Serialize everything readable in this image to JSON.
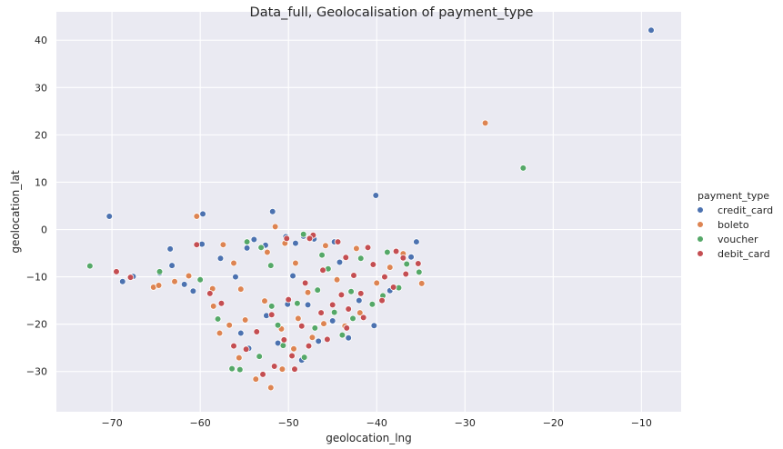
{
  "chart_data": {
    "type": "scatter",
    "title": "Data_full, Geolocalisation of payment_type",
    "xlabel": "geolocation_lng",
    "ylabel": "geolocation_lat",
    "xlim": [
      -76.3,
      -5.5
    ],
    "ylim": [
      -38.5,
      46.0
    ],
    "xticks": [
      -70,
      -60,
      -50,
      -40,
      -30,
      -20,
      -10
    ],
    "yticks": [
      -30,
      -20,
      -10,
      0,
      10,
      20,
      30,
      40
    ],
    "xtick_labels": [
      "−70",
      "−60",
      "−50",
      "−40",
      "−30",
      "−20",
      "−10"
    ],
    "ytick_labels": [
      "−30",
      "−20",
      "−10",
      "0",
      "10",
      "20",
      "30",
      "40"
    ],
    "grid": true,
    "legend": {
      "title": "payment_type",
      "placement": "right"
    },
    "series": [
      {
        "name": "credit_card",
        "color": "#4c72b0",
        "points": [
          [
            -70.3,
            2.8
          ],
          [
            -68.8,
            -11.0
          ],
          [
            -67.6,
            -9.9
          ],
          [
            -63.4,
            -4.1
          ],
          [
            -63.2,
            -7.6
          ],
          [
            -64.6,
            -9.2
          ],
          [
            -61.8,
            -11.6
          ],
          [
            -60.8,
            -13.0
          ],
          [
            -59.8,
            -3.1
          ],
          [
            -59.7,
            3.3
          ],
          [
            -57.7,
            -6.1
          ],
          [
            -56.0,
            -10.0
          ],
          [
            -54.7,
            -3.9
          ],
          [
            -53.9,
            -2.1
          ],
          [
            -51.8,
            3.8
          ],
          [
            -52.6,
            -3.3
          ],
          [
            -50.3,
            -1.5
          ],
          [
            -49.2,
            -2.9
          ],
          [
            -48.3,
            -1.4
          ],
          [
            -47.1,
            -2.0
          ],
          [
            -44.8,
            -2.6
          ],
          [
            -40.1,
            7.2
          ],
          [
            -35.5,
            -2.6
          ],
          [
            -8.9,
            42.1
          ],
          [
            -54.5,
            -25.1
          ],
          [
            -51.2,
            -24.0
          ],
          [
            -50.1,
            -15.8
          ],
          [
            -47.8,
            -15.9
          ],
          [
            -46.6,
            -23.6
          ],
          [
            -43.2,
            -22.9
          ],
          [
            -38.5,
            -12.9
          ],
          [
            -40.3,
            -20.3
          ],
          [
            -36.1,
            -5.8
          ],
          [
            -45.0,
            -19.3
          ],
          [
            -48.5,
            -27.6
          ],
          [
            -52.5,
            -18.2
          ],
          [
            -55.4,
            -21.9
          ],
          [
            -42.0,
            -15.0
          ],
          [
            -49.5,
            -9.8
          ],
          [
            -44.2,
            -6.9
          ]
        ]
      },
      {
        "name": "boleto",
        "color": "#dd8452",
        "points": [
          [
            -60.4,
            2.8
          ],
          [
            -57.4,
            -3.2
          ],
          [
            -56.2,
            -7.1
          ],
          [
            -65.3,
            -12.2
          ],
          [
            -64.7,
            -11.8
          ],
          [
            -62.9,
            -11.0
          ],
          [
            -61.3,
            -9.8
          ],
          [
            -58.6,
            -12.5
          ],
          [
            -58.5,
            -16.2
          ],
          [
            -57.8,
            -21.9
          ],
          [
            -56.7,
            -20.2
          ],
          [
            -55.4,
            -12.6
          ],
          [
            -52.4,
            -4.8
          ],
          [
            -51.5,
            0.6
          ],
          [
            -50.4,
            -2.9
          ],
          [
            -49.2,
            -7.1
          ],
          [
            -47.8,
            -13.3
          ],
          [
            -34.9,
            -11.4
          ],
          [
            -27.7,
            22.5
          ],
          [
            -53.7,
            -31.6
          ],
          [
            -52.0,
            -33.4
          ],
          [
            -50.7,
            -29.5
          ],
          [
            -49.4,
            -25.2
          ],
          [
            -47.3,
            -22.8
          ],
          [
            -46.0,
            -19.9
          ],
          [
            -43.6,
            -20.4
          ],
          [
            -41.9,
            -17.6
          ],
          [
            -40.0,
            -11.3
          ],
          [
            -38.5,
            -8.0
          ],
          [
            -37.0,
            -5.1
          ],
          [
            -42.3,
            -4.0
          ],
          [
            -45.8,
            -3.4
          ],
          [
            -52.7,
            -15.1
          ],
          [
            -54.9,
            -19.1
          ],
          [
            -48.9,
            -18.8
          ],
          [
            -44.5,
            -10.6
          ],
          [
            -50.8,
            -21.0
          ],
          [
            -55.6,
            -27.1
          ]
        ]
      },
      {
        "name": "voucher",
        "color": "#55a868",
        "points": [
          [
            -72.5,
            -7.7
          ],
          [
            -64.6,
            -8.9
          ],
          [
            -60.0,
            -10.6
          ],
          [
            -58.0,
            -18.9
          ],
          [
            -56.4,
            -29.4
          ],
          [
            -55.5,
            -29.6
          ],
          [
            -54.7,
            -2.6
          ],
          [
            -53.1,
            -3.8
          ],
          [
            -52.0,
            -7.6
          ],
          [
            -48.3,
            -1.0
          ],
          [
            -46.7,
            -12.8
          ],
          [
            -23.4,
            13.0
          ],
          [
            -35.2,
            -9.0
          ],
          [
            -37.5,
            -12.3
          ],
          [
            -40.5,
            -15.8
          ],
          [
            -42.9,
            -13.1
          ],
          [
            -44.8,
            -17.5
          ],
          [
            -47.0,
            -20.8
          ],
          [
            -50.6,
            -24.5
          ],
          [
            -53.3,
            -26.8
          ],
          [
            -51.9,
            -16.2
          ],
          [
            -49.0,
            -15.6
          ],
          [
            -45.5,
            -8.3
          ],
          [
            -41.8,
            -6.1
          ],
          [
            -38.8,
            -4.8
          ],
          [
            -43.9,
            -22.3
          ],
          [
            -48.2,
            -27.0
          ],
          [
            -39.3,
            -14.0
          ],
          [
            -36.6,
            -7.3
          ],
          [
            -51.2,
            -20.2
          ],
          [
            -46.2,
            -5.4
          ],
          [
            -42.7,
            -18.8
          ]
        ]
      },
      {
        "name": "debit_card",
        "color": "#c44e52",
        "points": [
          [
            -69.5,
            -8.9
          ],
          [
            -67.9,
            -10.1
          ],
          [
            -60.4,
            -3.2
          ],
          [
            -58.9,
            -13.5
          ],
          [
            -57.6,
            -15.6
          ],
          [
            -56.2,
            -24.6
          ],
          [
            -50.2,
            -1.9
          ],
          [
            -47.2,
            -1.2
          ],
          [
            -44.4,
            -2.6
          ],
          [
            -41.0,
            -3.8
          ],
          [
            -37.8,
            -4.6
          ],
          [
            -35.3,
            -7.2
          ],
          [
            -36.7,
            -9.4
          ],
          [
            -38.1,
            -12.2
          ],
          [
            -39.4,
            -15.0
          ],
          [
            -41.5,
            -18.6
          ],
          [
            -43.4,
            -20.8
          ],
          [
            -45.6,
            -23.2
          ],
          [
            -47.7,
            -24.6
          ],
          [
            -49.6,
            -26.7
          ],
          [
            -51.6,
            -28.9
          ],
          [
            -52.9,
            -30.6
          ],
          [
            -50.5,
            -23.3
          ],
          [
            -48.5,
            -20.4
          ],
          [
            -46.3,
            -17.6
          ],
          [
            -44.0,
            -13.8
          ],
          [
            -42.6,
            -9.7
          ],
          [
            -40.4,
            -7.4
          ],
          [
            -43.5,
            -5.9
          ],
          [
            -46.1,
            -8.6
          ],
          [
            -48.1,
            -11.3
          ],
          [
            -50.0,
            -14.8
          ],
          [
            -51.9,
            -18.0
          ],
          [
            -53.6,
            -21.6
          ],
          [
            -54.8,
            -25.3
          ],
          [
            -49.3,
            -29.5
          ],
          [
            -47.6,
            -1.9
          ],
          [
            -39.1,
            -10.0
          ],
          [
            -41.8,
            -13.5
          ],
          [
            -45.0,
            -15.9
          ],
          [
            -43.2,
            -16.8
          ],
          [
            -37.0,
            -6.0
          ]
        ]
      }
    ]
  }
}
